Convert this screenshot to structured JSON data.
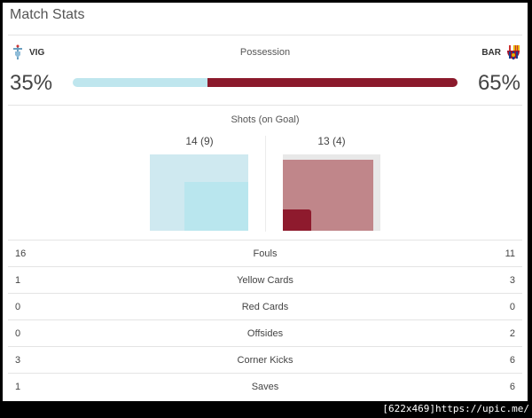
{
  "header": {
    "title": "Match Stats"
  },
  "possession": {
    "label": "Possession",
    "home": {
      "abbr": "VIG",
      "percent_text": "35%",
      "value": 35,
      "color": "#bfe6ee"
    },
    "away": {
      "abbr": "BAR",
      "percent_text": "65%",
      "value": 65,
      "color": "#8b1a2c"
    }
  },
  "shots": {
    "label": "Shots (on Goal)",
    "home": {
      "text": "14 (9)",
      "total": 14,
      "on_goal": 9
    },
    "away": {
      "text": "13 (4)",
      "total": 13,
      "on_goal": 4
    }
  },
  "stats": [
    {
      "label": "Fouls",
      "home": "16",
      "away": "11"
    },
    {
      "label": "Yellow Cards",
      "home": "1",
      "away": "3"
    },
    {
      "label": "Red Cards",
      "home": "0",
      "away": "0"
    },
    {
      "label": "Offsides",
      "home": "0",
      "away": "2"
    },
    {
      "label": "Corner Kicks",
      "home": "3",
      "away": "6"
    },
    {
      "label": "Saves",
      "home": "1",
      "away": "6"
    }
  ],
  "footer": {
    "text": "[622x469]https://upic.me/"
  }
}
